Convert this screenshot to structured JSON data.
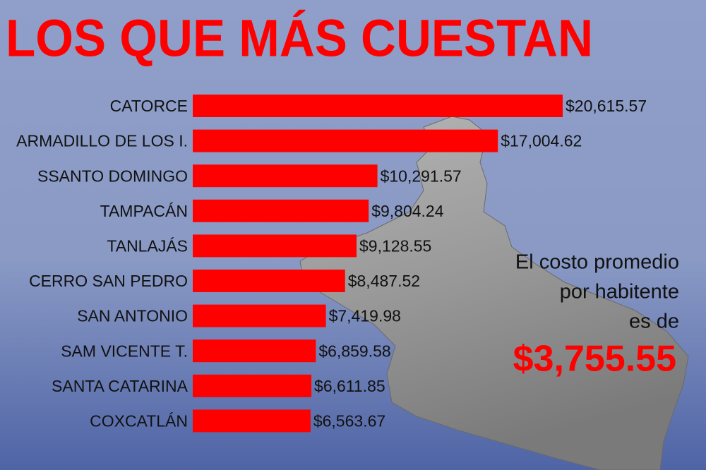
{
  "chart_data": {
    "type": "bar",
    "orientation": "horizontal",
    "title": "LOS QUE MÁS CUESTAN",
    "categories": [
      "CATORCE",
      "ARMADILLO DE LOS I.",
      "SSANTO DOMINGO",
      "TAMPACÁN",
      "TANLAJÁS",
      "CERRO SAN PEDRO",
      "SAN ANTONIO",
      "SAM VICENTE T.",
      "SANTA CATARINA",
      "COXCATLÁN"
    ],
    "values": [
      20615.57,
      17004.62,
      10291.57,
      9804.24,
      9128.55,
      8487.52,
      7419.98,
      6859.58,
      6611.85,
      6563.67
    ],
    "value_labels": [
      "$20,615.57",
      "$17,004.62",
      "$10,291.57",
      "$9,804.24",
      "$9,128.55",
      "$8,487.52",
      "$7,419.98",
      "$6,859.58",
      "$6,611.85",
      "$6,563.67"
    ],
    "color": "#ff0000",
    "annotation": [
      "El costo promedio",
      "por habitente",
      "es de"
    ],
    "highlight": "$3,755.55"
  }
}
